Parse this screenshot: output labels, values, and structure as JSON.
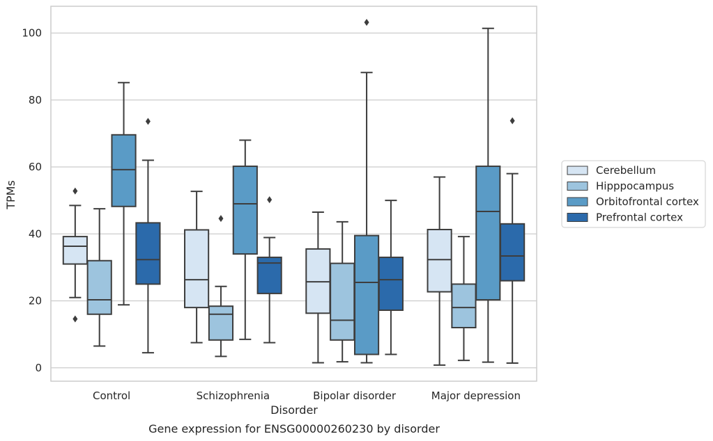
{
  "caption": "Gene expression for ENSG00000260230 by disorder",
  "chart_data": {
    "type": "boxplot",
    "xlabel": "Disorder",
    "ylabel": "TPMs",
    "ylim": [
      -4,
      108
    ],
    "yticks": [
      0,
      20,
      40,
      60,
      80,
      100
    ],
    "grid": true,
    "legend_position": "right",
    "categories": [
      "Control",
      "Schizophrenia",
      "Bipolar disorder",
      "Major depression"
    ],
    "series": [
      {
        "name": "Cerebellum",
        "color": "#d6e5f3",
        "boxes": [
          {
            "whislo": 21.0,
            "q1": 31.0,
            "med": 36.3,
            "q3": 39.2,
            "whishi": 48.5,
            "fliers": [
              52.8,
              14.6
            ]
          },
          {
            "whislo": 7.5,
            "q1": 18.0,
            "med": 26.3,
            "q3": 41.2,
            "whishi": 52.7,
            "fliers": []
          },
          {
            "whislo": 1.5,
            "q1": 16.3,
            "med": 25.7,
            "q3": 35.5,
            "whishi": 46.5,
            "fliers": []
          },
          {
            "whislo": 0.8,
            "q1": 22.7,
            "med": 32.3,
            "q3": 41.3,
            "whishi": 57.0,
            "fliers": []
          }
        ]
      },
      {
        "name": "Hipppocampus",
        "color": "#9dc4de",
        "boxes": [
          {
            "whislo": 6.5,
            "q1": 16.0,
            "med": 20.3,
            "q3": 32.0,
            "whishi": 47.5,
            "fliers": []
          },
          {
            "whislo": 3.4,
            "q1": 8.3,
            "med": 16.0,
            "q3": 18.4,
            "whishi": 24.3,
            "fliers": [
              44.6
            ]
          },
          {
            "whislo": 1.8,
            "q1": 8.3,
            "med": 14.2,
            "q3": 31.2,
            "whishi": 43.6,
            "fliers": []
          },
          {
            "whislo": 2.2,
            "q1": 12.0,
            "med": 18.0,
            "q3": 25.0,
            "whishi": 39.2,
            "fliers": []
          }
        ]
      },
      {
        "name": "Orbitofrontal cortex",
        "color": "#5a9bc6",
        "boxes": [
          {
            "whislo": 18.8,
            "q1": 48.2,
            "med": 59.2,
            "q3": 69.6,
            "whishi": 85.2,
            "fliers": []
          },
          {
            "whislo": 8.5,
            "q1": 34.0,
            "med": 49.0,
            "q3": 60.2,
            "whishi": 68.0,
            "fliers": []
          },
          {
            "whislo": 1.5,
            "q1": 4.0,
            "med": 25.5,
            "q3": 39.5,
            "whishi": 88.2,
            "fliers": [
              103.2
            ]
          },
          {
            "whislo": 1.7,
            "q1": 20.3,
            "med": 46.7,
            "q3": 60.2,
            "whishi": 101.4,
            "fliers": []
          }
        ]
      },
      {
        "name": "Prefrontal cortex",
        "color": "#2b6aab",
        "boxes": [
          {
            "whislo": 4.5,
            "q1": 25.0,
            "med": 32.3,
            "q3": 43.3,
            "whishi": 62.0,
            "fliers": [
              73.6
            ]
          },
          {
            "whislo": 7.5,
            "q1": 22.2,
            "med": 31.3,
            "q3": 33.0,
            "whishi": 38.9,
            "fliers": [
              50.2
            ]
          },
          {
            "whislo": 4.0,
            "q1": 17.2,
            "med": 26.3,
            "q3": 33.0,
            "whishi": 50.0,
            "fliers": []
          },
          {
            "whislo": 1.4,
            "q1": 26.0,
            "med": 33.4,
            "q3": 43.0,
            "whishi": 58.0,
            "fliers": [
              73.8
            ]
          }
        ]
      }
    ]
  }
}
